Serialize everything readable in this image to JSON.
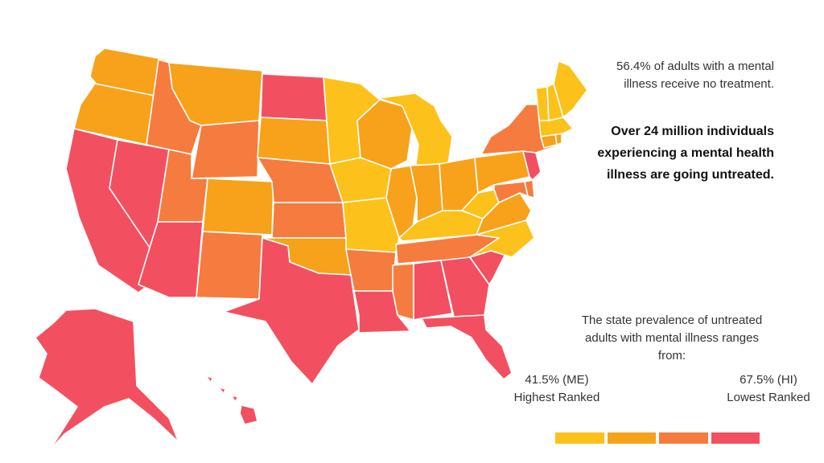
{
  "stat": {
    "line1a": "56.4% of adults with a mental",
    "line1b": "illness receive no treatment.",
    "bold_a": "Over 24 million individuals",
    "bold_b": "experiencing a mental health",
    "bold_c": "illness are going untreated."
  },
  "ranges": {
    "line_a": "The state prevalence of untreated",
    "line_b": "adults with mental illness ranges",
    "line_c": "from:",
    "low_value": "41.5% (ME)",
    "low_label": "Highest Ranked",
    "high_value": "67.5% (HI)",
    "high_label": "Lowest Ranked"
  },
  "colors": {
    "tier1": "#fcc21b",
    "tier2": "#f7a21a",
    "tier3": "#f57c3e",
    "tier4": "#f25060"
  },
  "legend_tiers": [
    "tier1",
    "tier2",
    "tier3",
    "tier4"
  ],
  "states": {
    "WA": "tier2",
    "OR": "tier2",
    "CA": "tier4",
    "NV": "tier4",
    "ID": "tier3",
    "MT": "tier2",
    "WY": "tier3",
    "UT": "tier3",
    "AZ": "tier4",
    "CO": "tier2",
    "NM": "tier3",
    "ND": "tier4",
    "SD": "tier2",
    "NE": "tier3",
    "KS": "tier3",
    "OK": "tier2",
    "TX": "tier4",
    "MN": "tier1",
    "IA": "tier1",
    "MO": "tier1",
    "AR": "tier3",
    "LA": "tier4",
    "WI": "tier2",
    "IL": "tier2",
    "MI": "tier1",
    "IN": "tier2",
    "OH": "tier2",
    "KY": "tier1",
    "TN": "tier3",
    "MS": "tier3",
    "AL": "tier4",
    "GA": "tier4",
    "FL": "tier4",
    "SC": "tier4",
    "NC": "tier1",
    "VA": "tier2",
    "WV": "tier1",
    "PA": "tier2",
    "NY": "tier3",
    "VT": "tier1",
    "NH": "tier1",
    "ME": "tier1",
    "MA": "tier1",
    "RI": "tier2",
    "CT": "tier2",
    "NJ": "tier4",
    "DE": "tier3",
    "MD": "tier3",
    "AK": "tier4",
    "HI": "tier4"
  }
}
